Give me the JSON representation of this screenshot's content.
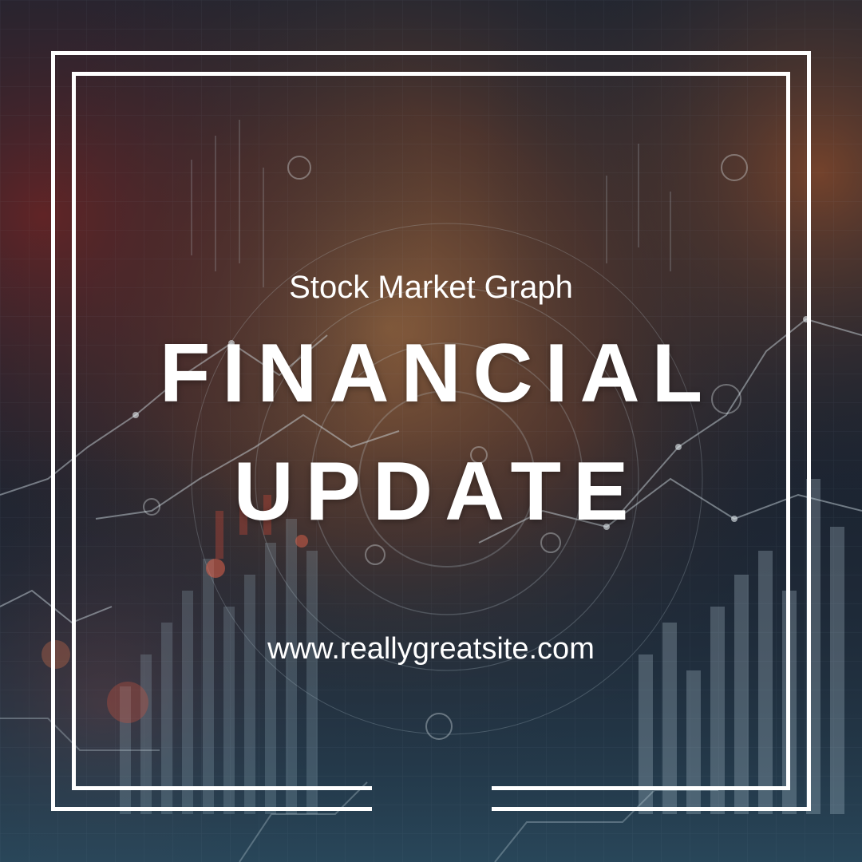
{
  "poster": {
    "subtitle": "Stock Market Graph",
    "title_line1": "FINANCIAL",
    "title_line2": "UPDATE",
    "website": "www.reallygreatsite.com"
  },
  "colors": {
    "text": "#ffffff",
    "frame": "#ffffff",
    "bg_dark": "#1c2431",
    "bg_warm": "#7a4a2e",
    "bg_teal": "#2f5a6a"
  }
}
